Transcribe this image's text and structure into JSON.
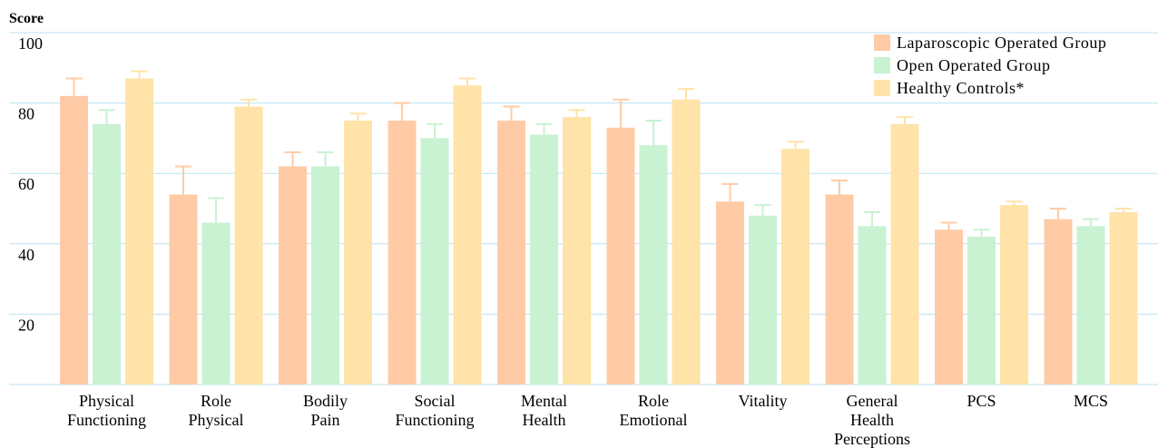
{
  "chart_data": {
    "type": "bar",
    "ylabel": "Score",
    "ylim": [
      0,
      100
    ],
    "yticks": [
      20,
      40,
      60,
      80,
      100
    ],
    "grid": true,
    "legend_position": "top-right",
    "categories": [
      [
        "Physical",
        "Functioning"
      ],
      [
        "Role",
        "Physical"
      ],
      [
        "Bodily",
        "Pain"
      ],
      [
        "Social",
        "Functioning"
      ],
      [
        "Mental",
        "Health"
      ],
      [
        "Role",
        "Emotional"
      ],
      [
        "Vitality"
      ],
      [
        "General",
        "Health",
        "Perceptions"
      ],
      [
        "PCS"
      ],
      [
        "MCS"
      ]
    ],
    "series": [
      {
        "name": "Laparoscopic Operated Group",
        "color": "#ffcba6",
        "values": [
          82,
          54,
          62,
          75,
          75,
          73,
          52,
          54,
          44,
          47
        ],
        "errors": [
          5,
          8,
          4,
          5,
          4,
          8,
          5,
          4,
          2,
          3
        ]
      },
      {
        "name": "Open Operated Group",
        "color": "#c8f2d2",
        "values": [
          74,
          46,
          62,
          70,
          71,
          68,
          48,
          45,
          42,
          45
        ],
        "errors": [
          4,
          7,
          4,
          4,
          3,
          7,
          3,
          4,
          2,
          2
        ]
      },
      {
        "name": "Healthy Controls*",
        "color": "#ffe3a8",
        "values": [
          87,
          79,
          75,
          85,
          76,
          81,
          67,
          74,
          51,
          49
        ],
        "errors": [
          2,
          2,
          2,
          2,
          2,
          3,
          2,
          2,
          1,
          1
        ]
      }
    ]
  }
}
